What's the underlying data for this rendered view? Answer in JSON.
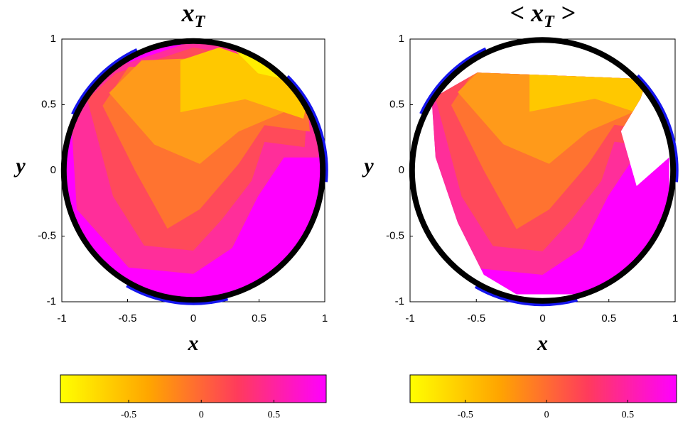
{
  "chart_data": [
    {
      "type": "contour",
      "title_parts": [
        "x",
        "T"
      ],
      "xlabel": "x",
      "ylabel": "y",
      "xlim": [
        -1,
        1
      ],
      "ylim": [
        -1,
        1
      ],
      "xticks": [
        -1,
        -0.5,
        0,
        0.5,
        1
      ],
      "yticks": [
        -1,
        -0.5,
        0,
        0.5,
        1
      ],
      "colormap": [
        "#ffff00",
        "#ffa500",
        "#ff3b5c",
        "#ff00ff"
      ],
      "clim": [
        -0.97,
        0.86
      ],
      "cticks": [
        -0.5,
        0,
        0.5
      ]
    },
    {
      "type": "contour",
      "title_parts": [
        "< x",
        "T",
        " >"
      ],
      "xlabel": "x",
      "ylabel": "y",
      "xlim": [
        -1,
        1
      ],
      "ylim": [
        -1,
        1
      ],
      "xticks": [
        -1,
        -0.5,
        0,
        0.5,
        1
      ],
      "yticks": [
        -1,
        -0.5,
        0,
        0.5,
        1
      ],
      "colormap": [
        "#ffff00",
        "#ffa500",
        "#ff3b5c",
        "#ff00ff"
      ],
      "clim": [
        -0.84,
        0.8
      ],
      "cticks": [
        -0.5,
        0,
        0.5
      ]
    }
  ]
}
